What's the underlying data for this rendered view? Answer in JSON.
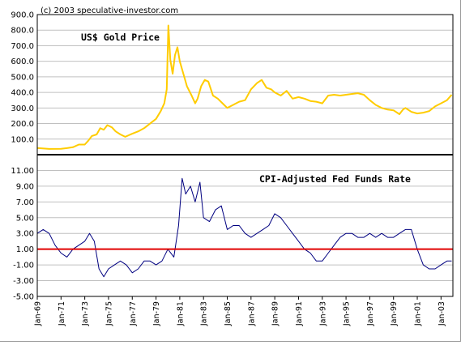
{
  "copyright": "(c) 2003 speculative-investor.com",
  "chart_data": [
    {
      "type": "line",
      "title": "US$ Gold Price",
      "ylim": [
        0,
        900
      ],
      "yticks": [
        "100.0",
        "200.0",
        "300.0",
        "400.0",
        "500.0",
        "600.0",
        "700.0",
        "800.0",
        "900.0"
      ],
      "grid": true,
      "series": [
        {
          "color": "#ffcc00",
          "x": [
            1969.0,
            1970.0,
            1971.0,
            1971.5,
            1972.0,
            1972.5,
            1973.0,
            1973.3,
            1973.6,
            1974.0,
            1974.3,
            1974.6,
            1974.9,
            1975.3,
            1975.6,
            1976.0,
            1976.4,
            1976.7,
            1977.0,
            1977.5,
            1978.0,
            1978.5,
            1979.0,
            1979.4,
            1979.7,
            1979.9,
            1980.04,
            1980.2,
            1980.4,
            1980.6,
            1980.8,
            1981.0,
            1981.3,
            1981.6,
            1982.0,
            1982.3,
            1982.5,
            1982.8,
            1983.1,
            1983.4,
            1983.8,
            1984.2,
            1984.6,
            1985.0,
            1985.5,
            1986.0,
            1986.5,
            1987.0,
            1987.5,
            1987.9,
            1988.3,
            1988.7,
            1989.0,
            1989.5,
            1990.0,
            1990.5,
            1991.0,
            1991.5,
            1992.0,
            1992.5,
            1993.0,
            1993.5,
            1994.0,
            1994.5,
            1995.0,
            1995.5,
            1996.0,
            1996.5,
            1997.0,
            1997.5,
            1998.0,
            1998.5,
            1999.0,
            1999.5,
            1999.8,
            2000.0,
            2000.5,
            2001.0,
            2001.5,
            2002.0,
            2002.5,
            2003.0,
            2003.5,
            2003.9
          ],
          "values": [
            43,
            37,
            38,
            42,
            48,
            65,
            65,
            90,
            120,
            130,
            170,
            160,
            190,
            175,
            150,
            130,
            115,
            125,
            135,
            150,
            170,
            200,
            230,
            280,
            330,
            420,
            830,
            610,
            520,
            640,
            690,
            600,
            520,
            440,
            380,
            330,
            360,
            440,
            480,
            470,
            380,
            360,
            330,
            300,
            320,
            340,
            350,
            420,
            460,
            480,
            430,
            420,
            400,
            380,
            410,
            360,
            370,
            360,
            345,
            340,
            330,
            380,
            385,
            380,
            385,
            390,
            395,
            385,
            350,
            320,
            300,
            290,
            285,
            260,
            290,
            300,
            275,
            265,
            270,
            280,
            310,
            330,
            350,
            385
          ]
        }
      ]
    },
    {
      "type": "line",
      "title": "CPI-Adjusted Fed Funds Rate",
      "ylim": [
        -5,
        13
      ],
      "yticks": [
        "-5.00",
        "-3.00",
        "-1.00",
        "1.00",
        "3.00",
        "5.00",
        "7.00",
        "9.00",
        "11.00"
      ],
      "grid": true,
      "reference_line": 1,
      "xlabels": [
        "Jan-69",
        "Jan-71",
        "Jan-73",
        "Jan-75",
        "Jan-77",
        "Jan-79",
        "Jan-81",
        "Jan-83",
        "Jan-85",
        "Jan-87",
        "Jan-89",
        "Jan-91",
        "Jan-93",
        "Jan-95",
        "Jan-97",
        "Jan-99",
        "Jan-01",
        "Jan-03"
      ],
      "series": [
        {
          "color": "#000080",
          "x": [
            1969.0,
            1969.5,
            1970.0,
            1970.5,
            1971.0,
            1971.5,
            1972.0,
            1972.5,
            1973.0,
            1973.4,
            1973.8,
            1974.2,
            1974.6,
            1975.0,
            1975.5,
            1976.0,
            1976.5,
            1977.0,
            1977.5,
            1978.0,
            1978.5,
            1979.0,
            1979.5,
            1980.0,
            1980.5,
            1980.9,
            1981.2,
            1981.5,
            1981.9,
            1982.3,
            1982.7,
            1983.0,
            1983.5,
            1984.0,
            1984.5,
            1985.0,
            1985.5,
            1986.0,
            1986.5,
            1987.0,
            1987.5,
            1988.0,
            1988.5,
            1989.0,
            1989.5,
            1990.0,
            1990.5,
            1991.0,
            1991.5,
            1992.0,
            1992.5,
            1993.0,
            1993.5,
            1994.0,
            1994.5,
            1995.0,
            1995.5,
            1996.0,
            1996.5,
            1997.0,
            1997.5,
            1998.0,
            1998.5,
            1999.0,
            1999.5,
            2000.0,
            2000.5,
            2001.0,
            2001.5,
            2002.0,
            2002.5,
            2003.0,
            2003.5,
            2003.9
          ],
          "values": [
            3.0,
            3.5,
            3.0,
            1.5,
            0.5,
            0.0,
            1.0,
            1.5,
            2.0,
            3.0,
            2.0,
            -1.5,
            -2.5,
            -1.5,
            -1.0,
            -0.5,
            -1.0,
            -2.0,
            -1.5,
            -0.5,
            -0.5,
            -1.0,
            -0.5,
            1.0,
            0.0,
            4.0,
            10.0,
            8.0,
            9.0,
            7.0,
            9.5,
            5.0,
            4.5,
            6.0,
            6.5,
            3.5,
            4.0,
            4.0,
            3.0,
            2.5,
            3.0,
            3.5,
            4.0,
            5.5,
            5.0,
            4.0,
            3.0,
            2.0,
            1.0,
            0.5,
            -0.5,
            -0.5,
            0.5,
            1.5,
            2.5,
            3.0,
            3.0,
            2.5,
            2.5,
            3.0,
            2.5,
            3.0,
            2.5,
            2.5,
            3.0,
            3.5,
            3.5,
            1.0,
            -1.0,
            -1.5,
            -1.5,
            -1.0,
            -0.5,
            -0.5
          ]
        }
      ]
    }
  ]
}
